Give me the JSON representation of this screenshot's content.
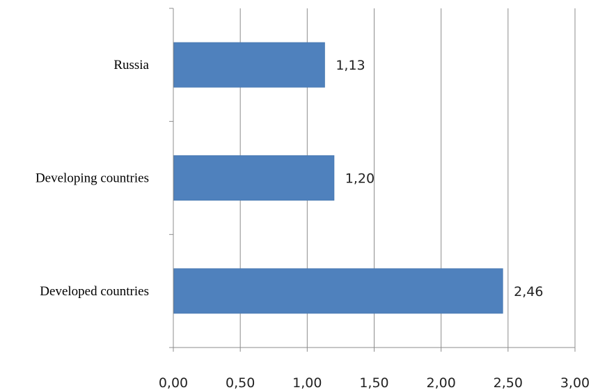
{
  "chart_data": {
    "type": "bar",
    "orientation": "horizontal",
    "categories": [
      "Russia",
      "Developing countries",
      "Developed countries"
    ],
    "values": [
      1.13,
      1.2,
      2.46
    ],
    "value_labels": [
      "1,13",
      "1,20",
      "2,46"
    ],
    "xlim": [
      0,
      3
    ],
    "x_ticks": [
      0,
      0.5,
      1,
      1.5,
      2,
      2.5,
      3
    ],
    "x_tick_labels": [
      "0,00",
      "0,50",
      "1,00",
      "1,50",
      "2,00",
      "2,50",
      "3,00"
    ],
    "grid": "vertical",
    "legend": "none",
    "bar_color": "#4f81bd",
    "title": "",
    "xlabel": "",
    "ylabel": ""
  }
}
